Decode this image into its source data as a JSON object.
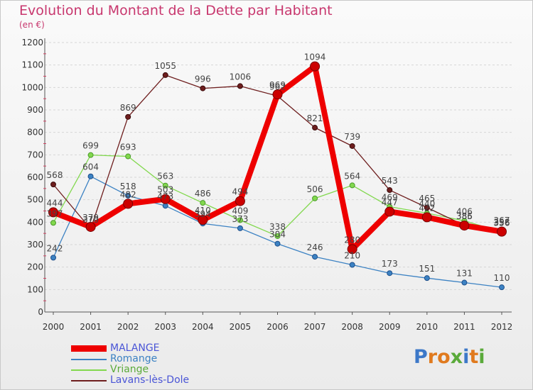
{
  "title": "Evolution du Montant de la Dette par Habitant",
  "subtitle": "(en €)",
  "chart_data": {
    "type": "line",
    "title": "Evolution du Montant de la Dette par Habitant",
    "subtitle": "(en €)",
    "ylim": [
      0,
      1200
    ],
    "yticks": [
      "0",
      "100",
      "200",
      "300",
      "400",
      "500",
      "600",
      "700",
      "800",
      "900",
      "1000",
      "1100",
      "1200"
    ],
    "categories": [
      "2000",
      "2001",
      "2002",
      "2003",
      "2004",
      "2005",
      "2006",
      "2007",
      "2008",
      "2009",
      "2010",
      "2011",
      "2012"
    ],
    "grid": "horizontal, dashed",
    "legend_position": "bottom-left",
    "series": [
      {
        "name": "Romange",
        "color": "#3c82c3",
        "values": [
          242,
          604,
          518,
          473,
          394,
          373,
          304,
          246,
          210,
          173,
          151,
          131,
          110
        ]
      },
      {
        "name": "Vriange",
        "color": "#82d84e",
        "values": [
          397,
          699,
          693,
          563,
          486,
          409,
          338,
          506,
          564,
          469,
          440,
          406,
          356
        ]
      },
      {
        "name": "Lavans-lès-Dole",
        "color": "#6e1e1e",
        "values": [
          568,
          370,
          869,
          1055,
          996,
          1006,
          962,
          821,
          739,
          543,
          465,
          386,
          367
        ]
      },
      {
        "name": "MALANGE",
        "color": "#ee0000",
        "values": [
          444,
          379,
          482,
          503,
          410,
          494,
          969,
          1094,
          280,
          447,
          422,
          385,
          358
        ]
      }
    ],
    "data_labels": [
      [
        "242",
        "604",
        "518",
        "473",
        "394",
        "373",
        "304",
        "246",
        "210",
        "173",
        "151",
        "131",
        "110"
      ],
      [
        "397",
        "699",
        "693",
        "563",
        "486",
        "409",
        "338",
        "506",
        "564",
        "469",
        "440",
        "406",
        "356"
      ],
      [
        "568",
        "370",
        "869",
        "1055",
        "996",
        "1006",
        "962",
        "821",
        "739",
        "543",
        "465",
        "386",
        "367"
      ],
      [
        "444",
        "379",
        "482",
        "503",
        "410",
        "494",
        "969",
        "1094",
        "280",
        "447",
        "422",
        "385",
        "358"
      ]
    ]
  },
  "legend": [
    {
      "label": "MALANGE",
      "color": "#ee0000",
      "text_color": "#4a55d6"
    },
    {
      "label": "Romange",
      "color": "#3c82c3",
      "text_color": "#3c82c3"
    },
    {
      "label": "Vriange",
      "color": "#82d84e",
      "text_color": "#5aaa3a"
    },
    {
      "label": "Lavans-lès-Dole",
      "color": "#6e1e1e",
      "text_color": "#4a55d6"
    }
  ],
  "logo": {
    "text": "Proxiti",
    "letters": [
      "P",
      "r",
      "o",
      "x",
      "i",
      "t",
      "i"
    ],
    "colors": [
      "#3c78c8",
      "#e07a1e",
      "#e07a1e",
      "#5aaa3a",
      "#3c78c8",
      "#e07a1e",
      "#5aaa3a"
    ]
  }
}
